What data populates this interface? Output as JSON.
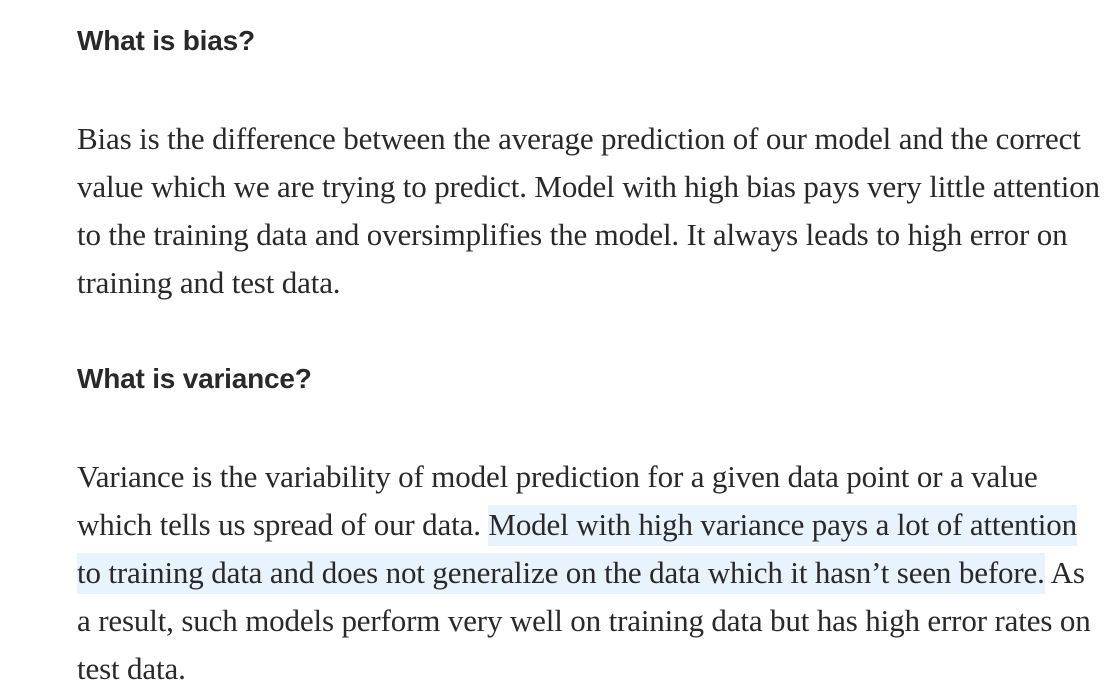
{
  "sections": [
    {
      "heading": "What is bias?",
      "paragraph": "Bias is the difference between the average prediction of our model and the correct value which we are trying to predict. Model with high bias pays very little attention to the training data and oversimplifies the model. It always leads to high error on training and test data."
    },
    {
      "heading": "What is variance?",
      "paragraph_before": "Variance is the variability of model prediction for a given data point or a value which tells us spread of our data. ",
      "paragraph_highlight": "Model with high variance pays a lot of attention to training data and does not generalize on the data which it hasn’t seen before.",
      "paragraph_after": " As a result, such models perform very well on training data but has high error rates on test data."
    }
  ],
  "colors": {
    "text": "#292929",
    "highlight": "#e8f3fd",
    "background": "#ffffff"
  }
}
